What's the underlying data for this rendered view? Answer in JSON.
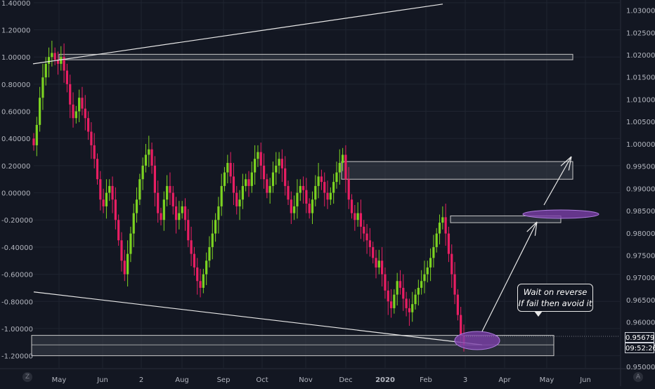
{
  "chart_data": {
    "type": "candlestick",
    "left_axis": {
      "ticks": [
        "1.40000",
        "1.20000",
        "1.00000",
        "0.80000",
        "0.60000",
        "0.40000",
        "0.20000",
        "0.00000",
        "-0.20000",
        "-0.40000",
        "-0.60000",
        "-0.80000",
        "-1.00000",
        "-1.20000"
      ],
      "range": [
        -1.29,
        1.42
      ]
    },
    "right_axis": {
      "ticks": [
        "1.03000",
        "1.02500",
        "1.02000",
        "1.01500",
        "1.01000",
        "1.00500",
        "1.00000",
        "0.99500",
        "0.99000",
        "0.98500",
        "0.98000",
        "0.97500",
        "0.97000",
        "0.96500",
        "0.96000",
        "0.95500",
        "0.95000"
      ],
      "range": [
        0.9497,
        1.0323
      ]
    },
    "x_labels": [
      "May",
      "Jun",
      "2",
      "Aug",
      "Sep",
      "Oct",
      "Nov",
      "Dec",
      "2020",
      "Feb",
      "3",
      "Apr",
      "May",
      "Jun"
    ],
    "x_label_bold": "2020",
    "series": [
      {
        "values": [
          0.35,
          0.5,
          0.7,
          0.85,
          0.95,
          1.0,
          1.03,
          0.98,
          0.95,
          1.0,
          0.9,
          0.8,
          0.65,
          0.55,
          0.6,
          0.7,
          0.62,
          0.55,
          0.45,
          0.35,
          0.25,
          0.1,
          -0.05,
          -0.1,
          0.0,
          0.05,
          -0.05,
          -0.2,
          -0.35,
          -0.5,
          -0.6,
          -0.45,
          -0.3,
          -0.15,
          -0.05,
          0.1,
          0.2,
          0.28,
          0.32,
          0.2,
          0.0,
          -0.15,
          -0.2,
          -0.05,
          0.05,
          0.0,
          -0.1,
          -0.2,
          -0.15,
          -0.1,
          -0.2,
          -0.35,
          -0.45,
          -0.55,
          -0.65,
          -0.7,
          -0.6,
          -0.5,
          -0.4,
          -0.3,
          -0.2,
          -0.1,
          0.05,
          0.15,
          0.22,
          0.12,
          0.0,
          -0.1,
          -0.05,
          0.05,
          0.1,
          0.05,
          0.15,
          0.25,
          0.3,
          0.2,
          0.1,
          0.0,
          0.05,
          0.15,
          0.2,
          0.25,
          0.18,
          0.05,
          -0.05,
          -0.15,
          -0.1,
          0.0,
          0.05,
          0.02,
          -0.08,
          -0.15,
          -0.05,
          0.05,
          0.12,
          0.08,
          0.0,
          -0.05,
          0.0,
          0.08,
          0.15,
          0.22,
          0.28,
          0.1,
          -0.05,
          -0.15,
          -0.2,
          -0.15,
          -0.25,
          -0.3,
          -0.35,
          -0.4,
          -0.48,
          -0.55,
          -0.5,
          -0.6,
          -0.72,
          -0.8,
          -0.85,
          -0.75,
          -0.65,
          -0.7,
          -0.78,
          -0.85,
          -0.88,
          -0.82,
          -0.75,
          -0.7,
          -0.65,
          -0.6,
          -0.55,
          -0.48,
          -0.4,
          -0.3,
          -0.22,
          -0.18,
          -0.3,
          -0.45,
          -0.6,
          -0.75,
          -0.9,
          -1.05,
          -1.12
        ],
        "open_start": 0.4
      }
    ],
    "support_zone": {
      "left_axis_range": [
        -1.2,
        -1.05
      ]
    },
    "upper_zone": {
      "left_axis_range": [
        0.98,
        1.02
      ]
    },
    "resistance_zone": {
      "left_axis_range": [
        0.1,
        0.23
      ]
    },
    "target_zone": {
      "left_axis_range": [
        -0.22,
        -0.17
      ]
    },
    "trendline_top": {
      "from": [
        "May",
        0.95
      ],
      "to": [
        "Apr",
        1.39
      ]
    },
    "trendline_bottom": {
      "from": [
        "May",
        -0.73
      ],
      "to": [
        "3",
        -1.12
      ]
    },
    "last_price": "0.95679",
    "countdown": "09:52:26"
  },
  "annotation": {
    "line1": "Wait on reverse",
    "line2": "If fail then avoid it"
  },
  "colors": {
    "background": "#131722",
    "up": "#7cd321",
    "down": "#e91e63",
    "zone_fill": "#3a3f4b",
    "zone_border": "#c8c8c8",
    "ellipse": "#7b3fa8",
    "axis_text": "#b2b5be",
    "grid": "#1f2430"
  },
  "corner_badges": {
    "left": "Z",
    "right": "A"
  }
}
